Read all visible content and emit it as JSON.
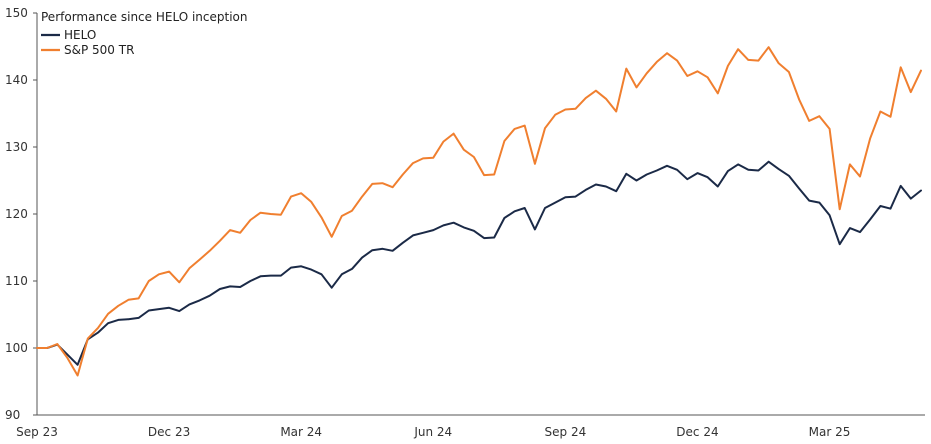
{
  "chart_data": {
    "type": "line",
    "title": "Performance since HELO inception",
    "xlabel": "",
    "ylabel": "",
    "ylim": [
      90,
      150
    ],
    "yticks": [
      90,
      100,
      110,
      120,
      130,
      140,
      150
    ],
    "x_tick_labels": [
      {
        "label": "Sep 23",
        "index": 0
      },
      {
        "label": "Dec 23",
        "index": 13
      },
      {
        "label": "Mar 24",
        "index": 26
      },
      {
        "label": "Jun 24",
        "index": 39
      },
      {
        "label": "Sep 24",
        "index": 52
      },
      {
        "label": "Dec 24",
        "index": 65
      },
      {
        "label": "Mar 25",
        "index": 78
      }
    ],
    "grid": false,
    "legend_position": "top-left",
    "series": [
      {
        "name": "HELO",
        "color": "#1b2a47",
        "values": [
          100.0,
          100.0,
          100.5,
          99.0,
          97.5,
          101.3,
          102.3,
          103.7,
          104.2,
          104.3,
          104.5,
          105.6,
          105.8,
          106.0,
          105.5,
          106.5,
          107.1,
          107.8,
          108.8,
          109.2,
          109.1,
          110.0,
          110.7,
          110.8,
          110.8,
          112.0,
          112.2,
          111.7,
          111.0,
          109.0,
          111.0,
          111.8,
          113.5,
          114.6,
          114.8,
          114.5,
          115.7,
          116.8,
          117.2,
          117.6,
          118.3,
          118.7,
          118.0,
          117.5,
          116.4,
          116.5,
          119.4,
          120.4,
          120.9,
          117.7,
          120.9,
          121.7,
          122.5,
          122.6,
          123.6,
          124.4,
          124.1,
          123.4,
          126.0,
          125.0,
          125.9,
          126.5,
          127.2,
          126.6,
          125.2,
          126.1,
          125.5,
          124.1,
          126.4,
          127.4,
          126.6,
          126.5,
          127.8,
          126.7,
          125.7,
          123.8,
          122.0,
          121.7,
          119.8,
          115.5,
          117.9,
          117.3,
          119.2,
          121.2,
          120.8,
          124.2,
          122.3,
          123.5
        ]
      },
      {
        "name": "S&P 500 TR",
        "color": "#f07f2f",
        "values": [
          100.0,
          100.0,
          100.6,
          98.5,
          95.9,
          101.4,
          103.0,
          105.1,
          106.3,
          107.2,
          107.4,
          110.0,
          111.0,
          111.4,
          109.8,
          111.9,
          113.2,
          114.5,
          116.0,
          117.6,
          117.2,
          119.1,
          120.2,
          120.0,
          119.9,
          122.6,
          123.1,
          121.8,
          119.5,
          116.6,
          119.7,
          120.5,
          122.6,
          124.5,
          124.6,
          124.0,
          125.9,
          127.6,
          128.3,
          128.4,
          130.8,
          132.0,
          129.6,
          128.5,
          125.8,
          125.9,
          130.9,
          132.7,
          133.2,
          127.5,
          132.8,
          134.8,
          135.6,
          135.7,
          137.3,
          138.4,
          137.2,
          135.3,
          141.7,
          138.9,
          141.0,
          142.7,
          144.0,
          142.9,
          140.6,
          141.3,
          140.4,
          138.0,
          142.1,
          144.6,
          143.0,
          142.9,
          144.9,
          142.5,
          141.2,
          137.1,
          133.9,
          134.6,
          132.7,
          120.7,
          127.4,
          125.6,
          131.3,
          135.3,
          134.5,
          141.9,
          138.2,
          141.4
        ]
      }
    ]
  }
}
